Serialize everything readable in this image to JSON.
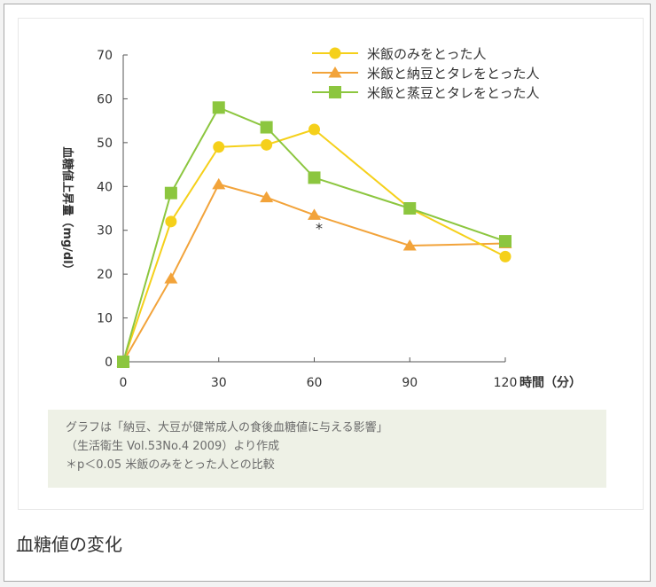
{
  "caption": "血糖値の変化",
  "note": {
    "line1": "グラフは「納豆、大豆が健常成人の食後血糖値に与える影響」",
    "line2": "（生活衛生 Vol.53No.4 2009）より作成",
    "line3": "＊p＜0.05 米飯のみをとった人との比較"
  },
  "significance_mark": "*",
  "chart_data": {
    "type": "line",
    "title": "",
    "xlabel": "時間（分）",
    "ylabel": "血糖値上昇量（mg/dl）",
    "xlim": [
      0,
      120
    ],
    "ylim": [
      0,
      70
    ],
    "x_ticks": [
      "0",
      "30",
      "60",
      "90",
      "120"
    ],
    "x_tick_values": [
      0,
      30,
      60,
      90,
      120
    ],
    "y_ticks": [
      "0",
      "10",
      "20",
      "30",
      "40",
      "50",
      "60",
      "70"
    ],
    "y_tick_values": [
      0,
      10,
      20,
      30,
      40,
      50,
      60,
      70
    ],
    "legend_position": "top-right",
    "grid": false,
    "series": [
      {
        "name": "米飯のみをとった人",
        "marker": "circle",
        "color": "#f5d01a",
        "x": [
          0,
          15,
          30,
          45,
          60,
          90,
          120
        ],
        "values": [
          0,
          32,
          49,
          49.5,
          53,
          35,
          24
        ]
      },
      {
        "name": "米飯と納豆とタレをとった人",
        "marker": "triangle",
        "color": "#f2a33a",
        "x": [
          0,
          15,
          30,
          45,
          60,
          90,
          120
        ],
        "values": [
          0,
          19,
          40.5,
          37.5,
          33.5,
          26.5,
          27
        ]
      },
      {
        "name": "米飯と蒸豆とタレをとった人",
        "marker": "square",
        "color": "#8cc63f",
        "x": [
          0,
          15,
          30,
          45,
          60,
          90,
          120
        ],
        "values": [
          0,
          38.5,
          58,
          53.5,
          42,
          35,
          27.5
        ]
      }
    ]
  }
}
